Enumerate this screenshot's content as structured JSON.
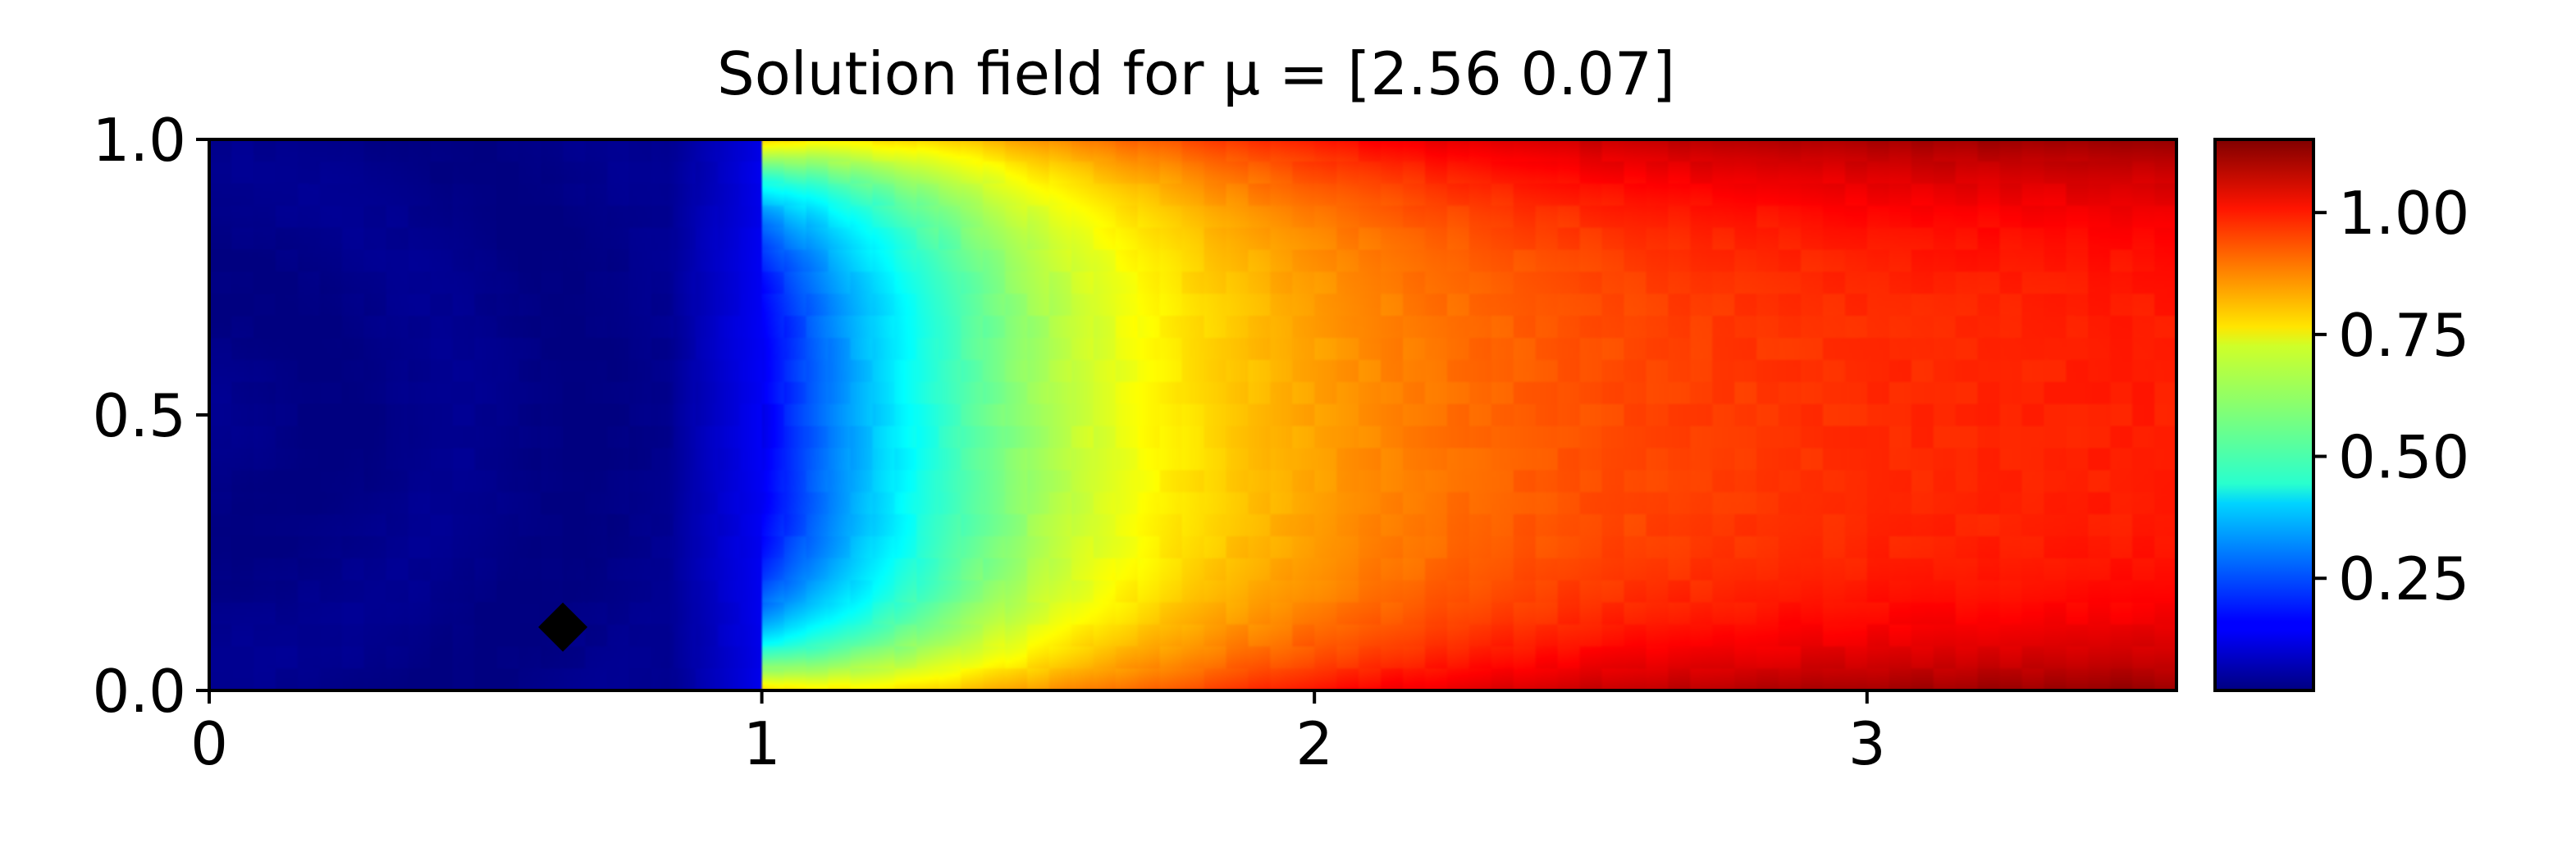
{
  "chart_data": {
    "type": "heatmap",
    "title": "Solution field for μ = [2.56 0.07]",
    "xlabel": "",
    "ylabel": "",
    "xlim": [
      0,
      3.56
    ],
    "ylim": [
      0,
      1
    ],
    "x_ticks": [
      {
        "value": 0,
        "label": "0"
      },
      {
        "value": 1,
        "label": "1"
      },
      {
        "value": 2,
        "label": "2"
      },
      {
        "value": 3,
        "label": "3"
      }
    ],
    "y_ticks": [
      {
        "value": 0,
        "label": "0.0"
      },
      {
        "value": 0.5,
        "label": "0.5"
      },
      {
        "value": 1,
        "label": "1.0"
      }
    ],
    "colormap": "jet",
    "colorbar": {
      "range": [
        0.02,
        1.15
      ],
      "ticks": [
        {
          "value": 0.25,
          "label": "0.25"
        },
        {
          "value": 0.5,
          "label": "0.50"
        },
        {
          "value": 0.75,
          "label": "0.75"
        },
        {
          "value": 1.0,
          "label": "1.00"
        }
      ]
    },
    "field_description": {
      "inlet_value": 0.03,
      "front_x": 1.0,
      "outlet_value": 1.05,
      "wall_max_value": 1.15
    },
    "marker": {
      "x": 0.64,
      "y": 0.115,
      "shape": "diamond",
      "color": "#000000"
    },
    "grid": false
  }
}
